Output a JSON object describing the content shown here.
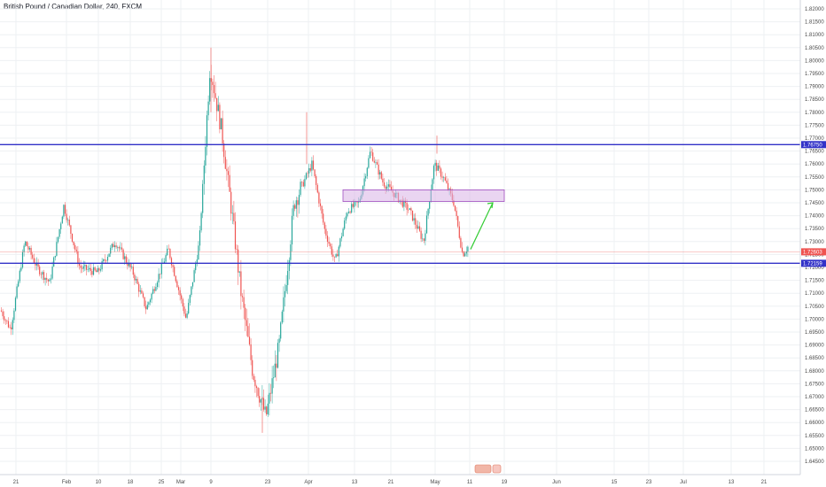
{
  "header": {
    "title": "British Pound / Canadian Dollar, 240, FXCM"
  },
  "colors": {
    "up": "#26a69a",
    "down": "#ef5350",
    "level_line": "#3232c8",
    "zone_fill": "#d9b3e6",
    "zone_stroke": "#a04fc0",
    "arrow": "#33cc33",
    "current_price": "#ef5350",
    "grid": "#eef0f3"
  },
  "chart_data": {
    "type": "candlestick",
    "title": "British Pound / Canadian Dollar, 240, FXCM",
    "ylim": [
      1.6425,
      1.8225
    ],
    "y_ticks": [
      "1.82000",
      "1.81500",
      "1.81000",
      "1.80500",
      "1.80000",
      "1.79500",
      "1.79000",
      "1.78500",
      "1.78000",
      "1.77500",
      "1.77000",
      "1.76500",
      "1.76000",
      "1.75500",
      "1.75000",
      "1.74500",
      "1.74000",
      "1.73500",
      "1.73000",
      "1.72500",
      "1.72000",
      "1.71500",
      "1.71000",
      "1.70500",
      "1.70000",
      "1.69500",
      "1.69000",
      "1.68500",
      "1.68000",
      "1.67500",
      "1.67000",
      "1.66500",
      "1.66000",
      "1.65500",
      "1.65000",
      "1.64500"
    ],
    "x_ticks": [
      "21",
      "Feb",
      "10",
      "18",
      "25",
      "Mar",
      "9",
      "23",
      "Apr",
      "13",
      "21",
      "May",
      "11",
      "19",
      "Jun",
      "15",
      "23",
      "Jul",
      "13",
      "21"
    ],
    "grid": true,
    "price_path": [
      {
        "x": 0,
        "p": 1.704
      },
      {
        "x": 12,
        "p": 1.696
      },
      {
        "x": 28,
        "p": 1.73
      },
      {
        "x": 42,
        "p": 1.72
      },
      {
        "x": 56,
        "p": 1.714
      },
      {
        "x": 72,
        "p": 1.744
      },
      {
        "x": 90,
        "p": 1.72
      },
      {
        "x": 110,
        "p": 1.718
      },
      {
        "x": 130,
        "p": 1.73
      },
      {
        "x": 150,
        "p": 1.718
      },
      {
        "x": 165,
        "p": 1.704
      },
      {
        "x": 190,
        "p": 1.727
      },
      {
        "x": 210,
        "p": 1.7
      },
      {
        "x": 225,
        "p": 1.73
      },
      {
        "x": 237,
        "p": 1.798
      },
      {
        "x": 250,
        "p": 1.773
      },
      {
        "x": 262,
        "p": 1.74
      },
      {
        "x": 272,
        "p": 1.71
      },
      {
        "x": 285,
        "p": 1.68
      },
      {
        "x": 300,
        "p": 1.662
      },
      {
        "x": 315,
        "p": 1.69
      },
      {
        "x": 332,
        "p": 1.745
      },
      {
        "x": 352,
        "p": 1.76
      },
      {
        "x": 366,
        "p": 1.735
      },
      {
        "x": 378,
        "p": 1.722
      },
      {
        "x": 392,
        "p": 1.742
      },
      {
        "x": 405,
        "p": 1.745
      },
      {
        "x": 418,
        "p": 1.765
      },
      {
        "x": 432,
        "p": 1.753
      },
      {
        "x": 446,
        "p": 1.748
      },
      {
        "x": 462,
        "p": 1.742
      },
      {
        "x": 478,
        "p": 1.73
      },
      {
        "x": 490,
        "p": 1.76
      },
      {
        "x": 500,
        "p": 1.755
      },
      {
        "x": 512,
        "p": 1.745
      },
      {
        "x": 522,
        "p": 1.725
      },
      {
        "x": 528,
        "p": 1.728
      }
    ],
    "horizontal_levels": [
      {
        "price": 1.7675,
        "label": "1.76750"
      },
      {
        "price": 1.72159,
        "label": "1.72159"
      }
    ],
    "current_price": {
      "price": 1.72603,
      "label": "1.72603"
    },
    "zone": {
      "price_top": 1.75,
      "price_bottom": 1.7455,
      "start": "Apr 7",
      "end": "May 18"
    },
    "arrow": {
      "from_price": 1.727,
      "to_price": 1.745
    }
  }
}
